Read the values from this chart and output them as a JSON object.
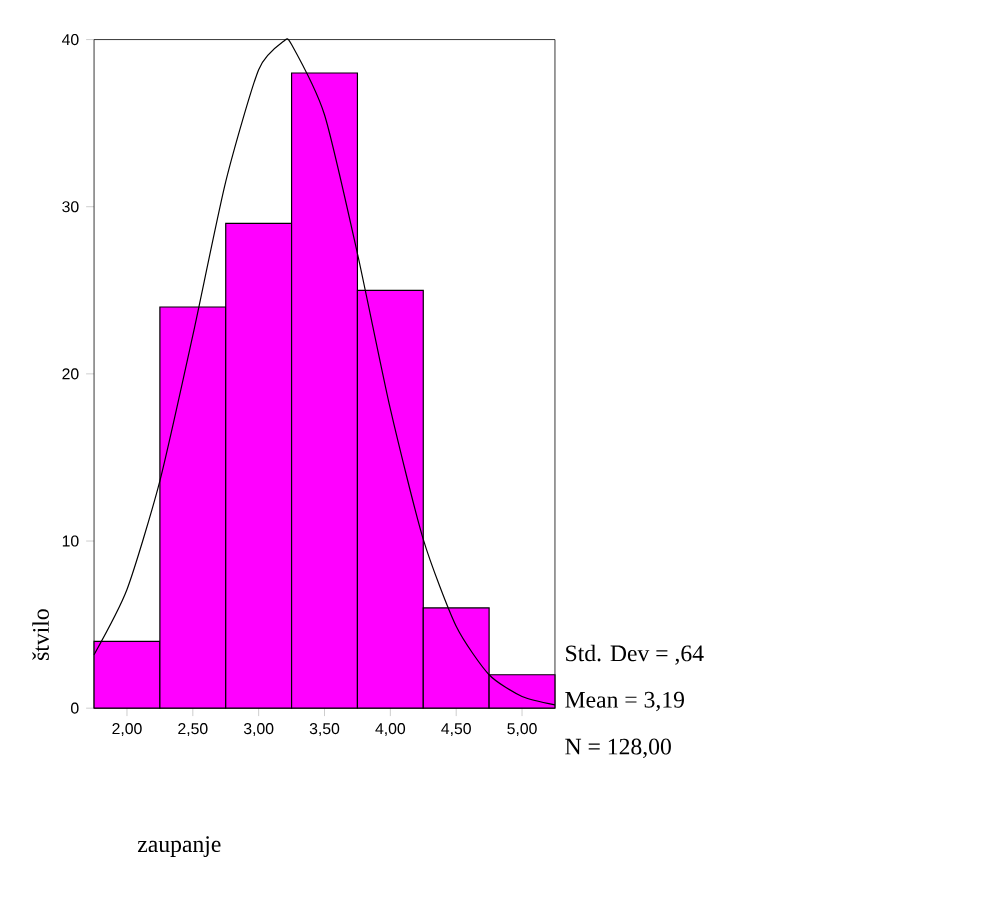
{
  "chart_data": {
    "type": "histogram",
    "bins": [
      1.75,
      2.25,
      2.75,
      3.25,
      3.75,
      4.25,
      4.75,
      5.25
    ],
    "values": [
      4,
      24,
      29,
      38,
      25,
      6,
      2
    ],
    "color": "#ff00ff",
    "series": [
      {
        "type": "line",
        "color": "#000000",
        "x": [
          1.75,
          2.0,
          2.25,
          2.5,
          2.75,
          3.0,
          3.19,
          3.25,
          3.5,
          3.75,
          4.0,
          4.25,
          4.5,
          4.75,
          5.0,
          5.25
        ],
        "values": [
          3.2,
          7.1,
          13.6,
          22.3,
          31.5,
          38.2,
          39.9,
          39.7,
          35.5,
          27.2,
          17.9,
          10.1,
          4.9,
          2.0,
          0.7,
          0.2
        ]
      }
    ],
    "xlabel": "zaupanje",
    "ylabel": "štvilo",
    "xlim": [
      1.75,
      5.25
    ],
    "ylim": [
      0,
      40
    ],
    "xticks": [
      {
        "value": 2.0,
        "label": "2,00"
      },
      {
        "value": 2.5,
        "label": "2,50"
      },
      {
        "value": 3.0,
        "label": "3,00"
      },
      {
        "value": 3.5,
        "label": "3,50"
      },
      {
        "value": 4.0,
        "label": "4,00"
      },
      {
        "value": 4.5,
        "label": "4,50"
      },
      {
        "value": 5.0,
        "label": "5,00"
      }
    ],
    "yticks": [
      0,
      10,
      20,
      30,
      40
    ],
    "annotations": [
      "Std. Dev = ,64",
      "Mean = 3,19",
      "N = 128,00"
    ]
  }
}
